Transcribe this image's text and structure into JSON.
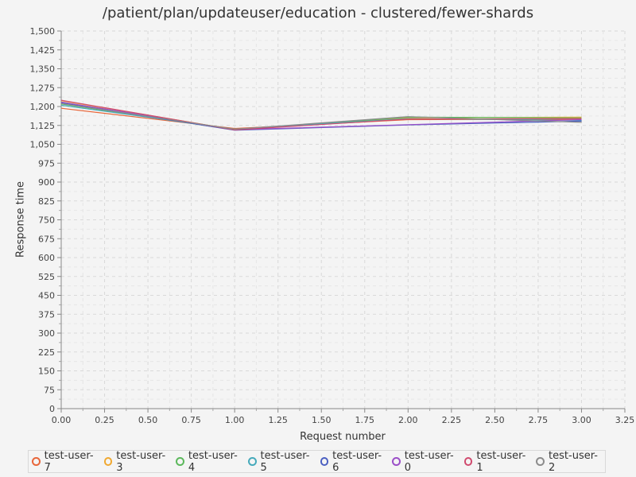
{
  "chart_data": {
    "type": "line",
    "title": "/patient/plan/updateuser/education - clustered/fewer-shards",
    "xlabel": "Request number",
    "ylabel": "Response time",
    "xlim": [
      0,
      3.25
    ],
    "ylim": [
      0,
      1500
    ],
    "x_ticks": [
      "0.00",
      "0.25",
      "0.50",
      "0.75",
      "1.00",
      "1.25",
      "1.50",
      "1.75",
      "2.00",
      "2.25",
      "2.50",
      "2.75",
      "3.00",
      "3.25"
    ],
    "y_ticks": [
      "0",
      "75",
      "150",
      "225",
      "300",
      "375",
      "450",
      "525",
      "600",
      "675",
      "750",
      "825",
      "900",
      "975",
      "1,050",
      "1,125",
      "1,200",
      "1,275",
      "1,350",
      "1,425",
      "1,500"
    ],
    "grid": true,
    "legend_position": "bottom",
    "x": [
      0,
      1,
      2,
      3
    ],
    "series": [
      {
        "name": "test-user-7",
        "color": "#e8663a",
        "values": [
          1193,
          1113,
          1148,
          1150
        ]
      },
      {
        "name": "test-user-3",
        "color": "#f0a830",
        "values": [
          1223,
          1108,
          1155,
          1158
        ]
      },
      {
        "name": "test-user-4",
        "color": "#5cb85c",
        "values": [
          1210,
          1107,
          1158,
          1155
        ]
      },
      {
        "name": "test-user-5",
        "color": "#46aabb",
        "values": [
          1205,
          1110,
          1152,
          1145
        ]
      },
      {
        "name": "test-user-6",
        "color": "#4a5fc1",
        "values": [
          1215,
          1106,
          1127,
          1142
        ]
      },
      {
        "name": "test-user-0",
        "color": "#9b4fc8",
        "values": [
          1218,
          1108,
          1128,
          1148
        ]
      },
      {
        "name": "test-user-1",
        "color": "#d04a6e",
        "values": [
          1225,
          1107,
          1150,
          1152
        ]
      },
      {
        "name": "test-user-2",
        "color": "#8c8c8c",
        "values": [
          1212,
          1110,
          1160,
          1137
        ]
      }
    ]
  }
}
